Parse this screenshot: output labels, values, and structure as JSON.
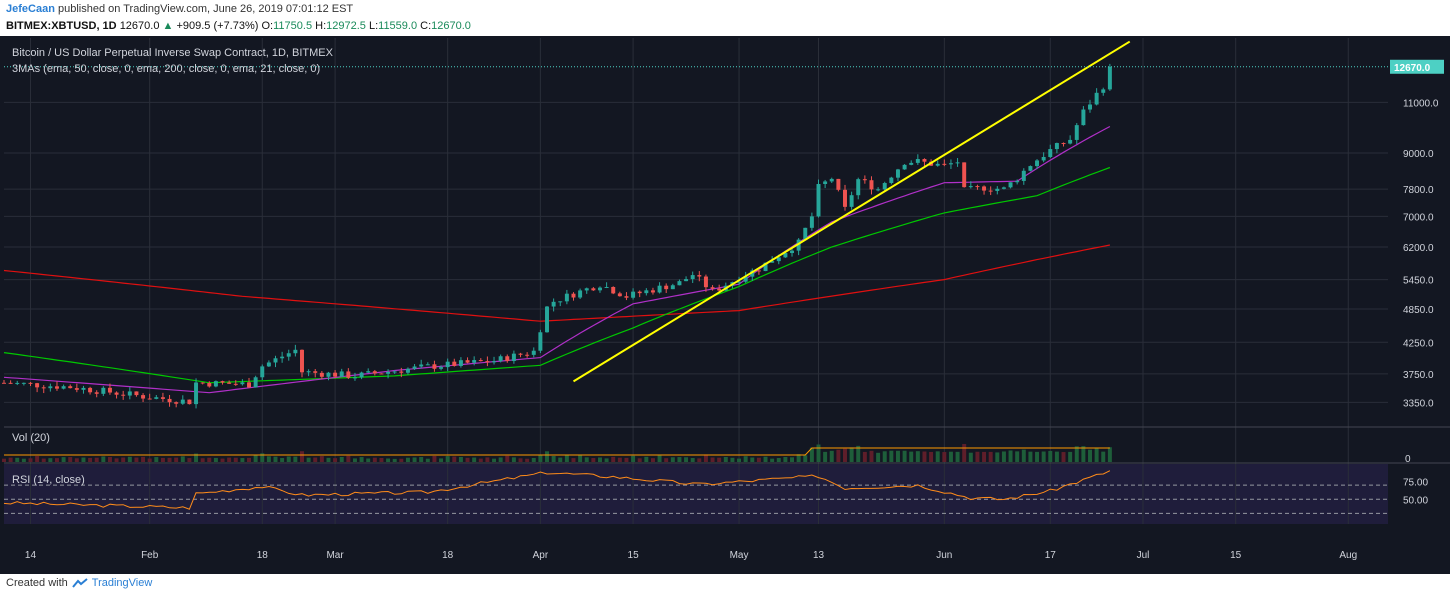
{
  "header": {
    "author": "JefeCaan",
    "published_text": "published on TradingView.com, June 26, 2019 07:01:12 EST",
    "symbol": "BITMEX:XBTUSD, 1D",
    "last": "12670.0",
    "change_arrow": "▲",
    "change": "+909.5 (+7.73%)",
    "o_label": "O:",
    "o_val": "11750.5",
    "h_label": "H:",
    "h_val": "12972.5",
    "l_label": "L:",
    "l_val": "11559.0",
    "c_label": "C:",
    "c_val": "12670.0"
  },
  "panes": {
    "main_title": "Bitcoin / US Dollar Perpetual Inverse Swap Contract, 1D, BITMEX",
    "ma_legend": "3MAs (ema, 50, close, 0, ema, 200, close, 0, ema, 21, close, 0)",
    "vol_title": "Vol (20)",
    "rsi_title": "RSI (14, close)"
  },
  "footer": {
    "created_with": "Created with",
    "brand": "TradingView"
  },
  "colors": {
    "background": "#131722",
    "grid": "#2a2e39",
    "up": "#26a69a",
    "down": "#ef5350",
    "ema50": "#00c800",
    "ema200": "#e01010",
    "ema21": "#b030c8",
    "trendline": "#ffff00",
    "rsi": "#ff8c1a",
    "vol_ma": "#ff9800",
    "price_tag": "#4dd0c4"
  },
  "chart_data": {
    "type": "candlestick",
    "y_scale": "log",
    "ylim": [
      3050,
      14200
    ],
    "y_ticks": [
      "3350.0",
      "3750.0",
      "4250.0",
      "4850.0",
      "5450.0",
      "6200.0",
      "7000.0",
      "7800.0",
      "9000.0",
      "11000.0"
    ],
    "y_tick_values": [
      3350,
      3750,
      4250,
      4850,
      5450,
      6200,
      7000,
      7800,
      9000,
      11000
    ],
    "last_price_label": "12670.0",
    "last_price": 12670,
    "x_range": [
      "2019-01-10",
      "2019-08-07"
    ],
    "x_ticks": [
      {
        "label": "14",
        "date": "2019-01-14"
      },
      {
        "label": "Feb",
        "date": "2019-02-01"
      },
      {
        "label": "18",
        "date": "2019-02-18"
      },
      {
        "label": "Mar",
        "date": "2019-03-01"
      },
      {
        "label": "18",
        "date": "2019-03-18"
      },
      {
        "label": "Apr",
        "date": "2019-04-01"
      },
      {
        "label": "15",
        "date": "2019-04-15"
      },
      {
        "label": "May",
        "date": "2019-05-01"
      },
      {
        "label": "13",
        "date": "2019-05-13"
      },
      {
        "label": "Jun",
        "date": "2019-06-01"
      },
      {
        "label": "17",
        "date": "2019-06-17"
      },
      {
        "label": "Jul",
        "date": "2019-07-01"
      },
      {
        "label": "15",
        "date": "2019-07-15"
      },
      {
        "label": "Aug",
        "date": "2019-08-01"
      }
    ],
    "close_keypoints": [
      {
        "date": "2019-01-10",
        "close": 3620
      },
      {
        "date": "2019-01-20",
        "close": 3560
      },
      {
        "date": "2019-01-31",
        "close": 3430
      },
      {
        "date": "2019-02-07",
        "close": 3360
      },
      {
        "date": "2019-02-08",
        "close": 3620
      },
      {
        "date": "2019-02-16",
        "close": 3600
      },
      {
        "date": "2019-02-18",
        "close": 3870
      },
      {
        "date": "2019-02-23",
        "close": 4120
      },
      {
        "date": "2019-02-24",
        "close": 3780
      },
      {
        "date": "2019-03-04",
        "close": 3720
      },
      {
        "date": "2019-03-15",
        "close": 3860
      },
      {
        "date": "2019-03-25",
        "close": 3950
      },
      {
        "date": "2019-03-31",
        "close": 4100
      },
      {
        "date": "2019-04-02",
        "close": 4880
      },
      {
        "date": "2019-04-03",
        "close": 5000
      },
      {
        "date": "2019-04-10",
        "close": 5350
      },
      {
        "date": "2019-04-14",
        "close": 5100
      },
      {
        "date": "2019-04-22",
        "close": 5380
      },
      {
        "date": "2019-04-24",
        "close": 5560
      },
      {
        "date": "2019-04-27",
        "close": 5200
      },
      {
        "date": "2019-05-04",
        "close": 5700
      },
      {
        "date": "2019-05-10",
        "close": 6300
      },
      {
        "date": "2019-05-12",
        "close": 7000
      },
      {
        "date": "2019-05-13",
        "close": 7850
      },
      {
        "date": "2019-05-15",
        "close": 8150
      },
      {
        "date": "2019-05-17",
        "close": 7200
      },
      {
        "date": "2019-05-19",
        "close": 8100
      },
      {
        "date": "2019-05-22",
        "close": 7800
      },
      {
        "date": "2019-05-26",
        "close": 8700
      },
      {
        "date": "2019-05-28",
        "close": 8700
      },
      {
        "date": "2019-06-01",
        "close": 8550
      },
      {
        "date": "2019-06-03",
        "close": 8700
      },
      {
        "date": "2019-06-04",
        "close": 7750
      },
      {
        "date": "2019-06-07",
        "close": 7850
      },
      {
        "date": "2019-06-10",
        "close": 7800
      },
      {
        "date": "2019-06-12",
        "close": 8150
      },
      {
        "date": "2019-06-14",
        "close": 8600
      },
      {
        "date": "2019-06-17",
        "close": 9100
      },
      {
        "date": "2019-06-20",
        "close": 9500
      },
      {
        "date": "2019-06-22",
        "close": 10600
      },
      {
        "date": "2019-06-25",
        "close": 11750
      },
      {
        "date": "2019-06-26",
        "close": 12670
      }
    ],
    "ema50_keypoints": [
      {
        "date": "2019-01-10",
        "value": 4080
      },
      {
        "date": "2019-02-10",
        "value": 3620
      },
      {
        "date": "2019-03-10",
        "value": 3720
      },
      {
        "date": "2019-04-01",
        "value": 3880
      },
      {
        "date": "2019-04-15",
        "value": 4500
      },
      {
        "date": "2019-05-01",
        "value": 5300
      },
      {
        "date": "2019-05-15",
        "value": 6200
      },
      {
        "date": "2019-06-01",
        "value": 7100
      },
      {
        "date": "2019-06-15",
        "value": 7600
      },
      {
        "date": "2019-06-26",
        "value": 8500
      }
    ],
    "ema200_keypoints": [
      {
        "date": "2019-01-10",
        "value": 5650
      },
      {
        "date": "2019-02-15",
        "value": 5100
      },
      {
        "date": "2019-04-01",
        "value": 4620
      },
      {
        "date": "2019-05-01",
        "value": 4820
      },
      {
        "date": "2019-06-01",
        "value": 5450
      },
      {
        "date": "2019-06-26",
        "value": 6250
      }
    ],
    "ema21_keypoints": [
      {
        "date": "2019-01-10",
        "value": 3700
      },
      {
        "date": "2019-02-10",
        "value": 3480
      },
      {
        "date": "2019-03-10",
        "value": 3800
      },
      {
        "date": "2019-04-01",
        "value": 4000
      },
      {
        "date": "2019-04-15",
        "value": 4950
      },
      {
        "date": "2019-05-01",
        "value": 5350
      },
      {
        "date": "2019-05-15",
        "value": 6850
      },
      {
        "date": "2019-06-01",
        "value": 8000
      },
      {
        "date": "2019-06-12",
        "value": 8050
      },
      {
        "date": "2019-06-26",
        "value": 10000
      }
    ],
    "trendline": [
      {
        "date": "2019-04-06",
        "value": 3640
      },
      {
        "date": "2019-06-29",
        "value": 14000
      }
    ],
    "rsi": {
      "levels": [
        30,
        50,
        70
      ],
      "tick_labels": [
        "75.00",
        "50.00"
      ],
      "tick_values": [
        75,
        50
      ],
      "keypoints": [
        {
          "date": "2019-01-10",
          "value": 45
        },
        {
          "date": "2019-02-07",
          "value": 38
        },
        {
          "date": "2019-02-08",
          "value": 58
        },
        {
          "date": "2019-02-18",
          "value": 68
        },
        {
          "date": "2019-02-24",
          "value": 56
        },
        {
          "date": "2019-03-15",
          "value": 60
        },
        {
          "date": "2019-04-02",
          "value": 88
        },
        {
          "date": "2019-04-12",
          "value": 82
        },
        {
          "date": "2019-04-25",
          "value": 71
        },
        {
          "date": "2019-05-13",
          "value": 83
        },
        {
          "date": "2019-05-17",
          "value": 66
        },
        {
          "date": "2019-05-28",
          "value": 70
        },
        {
          "date": "2019-06-05",
          "value": 52
        },
        {
          "date": "2019-06-10",
          "value": 50
        },
        {
          "date": "2019-06-17",
          "value": 62
        },
        {
          "date": "2019-06-26",
          "value": 90
        }
      ]
    },
    "volume": {
      "tick_label": "0"
    }
  }
}
